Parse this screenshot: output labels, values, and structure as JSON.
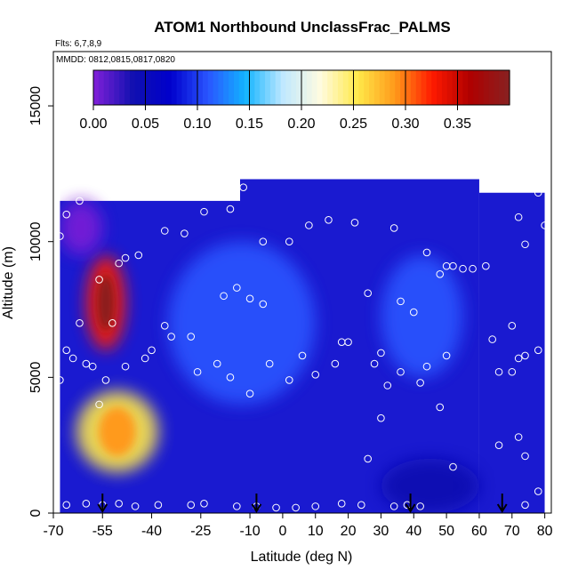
{
  "chart_data": {
    "type": "heatmap",
    "title": "ATOM1 Northbound UnclassFrac_PALMS",
    "subtitle_flights": "Flts: 6,7,8,9",
    "subtitle_dates": "MMDD: 0812,0815,0817,0820",
    "xlabel": "Latitude (deg N)",
    "ylabel": "Altitude (m)",
    "xlim": [
      -70,
      82
    ],
    "ylim": [
      0,
      17000
    ],
    "x_ticks": [
      -70,
      -55,
      -40,
      -25,
      -10,
      0,
      10,
      20,
      30,
      40,
      50,
      60,
      70,
      80
    ],
    "x_tick_labels": [
      "-70",
      "-55",
      "-40",
      "-25",
      "-10",
      "0",
      "10",
      "20",
      "30",
      "40",
      "50",
      "60",
      "70",
      "80"
    ],
    "y_ticks": [
      0,
      5000,
      10000,
      15000
    ],
    "y_tick_labels": [
      "0",
      "5000",
      "10000",
      "15000"
    ],
    "colorbar": {
      "min": 0.0,
      "max": 0.4,
      "ticks": [
        0.0,
        0.05,
        0.1,
        0.15,
        0.2,
        0.25,
        0.3,
        0.35
      ],
      "tick_labels": [
        "0.00",
        "0.05",
        "0.10",
        "0.15",
        "0.20",
        "0.25",
        "0.30",
        "0.35"
      ],
      "colors": [
        "#7a1fd6",
        "#1010b0",
        "#0000cc",
        "#2a55ff",
        "#12b4ff",
        "#bfe8ff",
        "#fffbe0",
        "#ffe94a",
        "#ff9a1a",
        "#ff1a00",
        "#b00000",
        "#8a1f1f"
      ]
    },
    "field_extent": {
      "lat": [
        -68,
        80
      ],
      "alt_top_south": 11500,
      "alt_top_mid": 12300,
      "alt_top_north": 11800
    },
    "features": [
      {
        "lat": [
          -60,
          -48
        ],
        "alt": [
          6000,
          9500
        ],
        "value": 0.33,
        "desc": "high plume"
      },
      {
        "lat": [
          -63,
          -38
        ],
        "alt": [
          1500,
          4500
        ],
        "value": 0.24,
        "desc": "lower plume"
      },
      {
        "lat": [
          -35,
          10
        ],
        "alt": [
          4000,
          10000
        ],
        "value": 0.12
      },
      {
        "lat": [
          30,
          55
        ],
        "alt": [
          5000,
          9500
        ],
        "value": 0.13
      },
      {
        "lat": [
          30,
          60
        ],
        "alt": [
          0,
          2000
        ],
        "value": 0.04
      },
      {
        "lat": [
          -68,
          -55
        ],
        "alt": [
          9500,
          11500
        ],
        "value": 0.02
      }
    ],
    "samples": [
      [
        -66,
        300
      ],
      [
        -60,
        350
      ],
      [
        -55,
        300
      ],
      [
        -50,
        350
      ],
      [
        -45,
        250
      ],
      [
        -38,
        300
      ],
      [
        -28,
        300
      ],
      [
        -24,
        350
      ],
      [
        -14,
        250
      ],
      [
        -8,
        250
      ],
      [
        -2,
        200
      ],
      [
        4,
        200
      ],
      [
        10,
        250
      ],
      [
        18,
        350
      ],
      [
        24,
        300
      ],
      [
        34,
        250
      ],
      [
        38,
        300
      ],
      [
        42,
        250
      ],
      [
        74,
        300
      ],
      [
        78,
        800
      ],
      [
        -68,
        4900
      ],
      [
        -66,
        6000
      ],
      [
        -64,
        5700
      ],
      [
        -60,
        5500
      ],
      [
        -58,
        5400
      ],
      [
        -54,
        4900
      ],
      [
        -48,
        5400
      ],
      [
        -42,
        5700
      ],
      [
        -40,
        6000
      ],
      [
        -36,
        6900
      ],
      [
        -34,
        6500
      ],
      [
        -28,
        6500
      ],
      [
        -26,
        5200
      ],
      [
        -20,
        5500
      ],
      [
        -16,
        5000
      ],
      [
        -10,
        4400
      ],
      [
        -4,
        5500
      ],
      [
        2,
        4900
      ],
      [
        6,
        5800
      ],
      [
        10,
        5100
      ],
      [
        16,
        5500
      ],
      [
        20,
        6300
      ],
      [
        28,
        5500
      ],
      [
        30,
        5900
      ],
      [
        32,
        4700
      ],
      [
        36,
        5200
      ],
      [
        42,
        4800
      ],
      [
        44,
        5400
      ],
      [
        48,
        3900
      ],
      [
        50,
        5800
      ],
      [
        66,
        5200
      ],
      [
        70,
        5200
      ],
      [
        72,
        5700
      ],
      [
        74,
        5800
      ],
      [
        78,
        6000
      ],
      [
        -68,
        10200
      ],
      [
        -66,
        11000
      ],
      [
        -62,
        11500
      ],
      [
        -56,
        8600
      ],
      [
        -50,
        9200
      ],
      [
        -48,
        9400
      ],
      [
        -44,
        9500
      ],
      [
        -36,
        10400
      ],
      [
        -30,
        10300
      ],
      [
        -24,
        11100
      ],
      [
        -16,
        11200
      ],
      [
        -12,
        12000
      ],
      [
        -6,
        10000
      ],
      [
        2,
        10000
      ],
      [
        8,
        10600
      ],
      [
        14,
        10800
      ],
      [
        22,
        10700
      ],
      [
        34,
        10500
      ],
      [
        44,
        9600
      ],
      [
        50,
        9100
      ],
      [
        52,
        9100
      ],
      [
        55,
        9000
      ],
      [
        58,
        9000
      ],
      [
        62,
        9100
      ],
      [
        72,
        10900
      ],
      [
        74,
        9900
      ],
      [
        78,
        11800
      ],
      [
        80,
        10600
      ],
      [
        -52,
        7000
      ],
      [
        -18,
        8000
      ],
      [
        -14,
        8300
      ],
      [
        -10,
        7900
      ],
      [
        -6,
        7700
      ],
      [
        26,
        8100
      ],
      [
        36,
        7800
      ],
      [
        40,
        7400
      ],
      [
        48,
        8800
      ],
      [
        64,
        6400
      ],
      [
        70,
        6900
      ],
      [
        -62,
        7000
      ],
      [
        -56,
        4000
      ],
      [
        18,
        6300
      ],
      [
        30,
        3500
      ],
      [
        52,
        1700
      ],
      [
        66,
        2500
      ],
      [
        72,
        2800
      ],
      [
        74,
        2100
      ],
      [
        26,
        2000
      ]
    ],
    "flight_markers_lat": [
      -55,
      -8,
      39,
      67
    ]
  }
}
